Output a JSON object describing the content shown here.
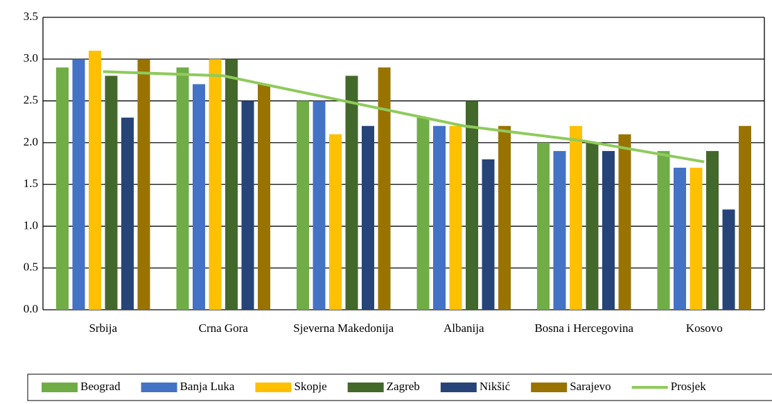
{
  "chart_data": {
    "type": "bar",
    "categories": [
      "Srbija",
      "Crna Gora",
      "Sjeverna Makedonija",
      "Albanija",
      "Bosna i Hercegovina",
      "Kosovo"
    ],
    "series": [
      {
        "name": "Beograd",
        "color": "#70ad47",
        "values": [
          2.9,
          2.9,
          2.5,
          2.3,
          2.0,
          1.9
        ]
      },
      {
        "name": "Banja Luka",
        "color": "#4472c4",
        "values": [
          3.0,
          2.7,
          2.5,
          2.2,
          1.9,
          1.7
        ]
      },
      {
        "name": "Skopje",
        "color": "#ffc000",
        "values": [
          3.1,
          3.0,
          2.1,
          2.2,
          2.2,
          1.7
        ]
      },
      {
        "name": "Zagreb",
        "color": "#43682b",
        "values": [
          2.8,
          3.0,
          2.8,
          2.5,
          2.0,
          1.9
        ]
      },
      {
        "name": "Nikšić",
        "color": "#264478",
        "values": [
          2.3,
          2.5,
          2.2,
          1.8,
          1.9,
          1.2
        ]
      },
      {
        "name": "Sarajevo",
        "color": "#997300",
        "values": [
          3.0,
          2.7,
          2.9,
          2.2,
          2.1,
          2.2
        ]
      },
      {
        "name": "Prosjek",
        "color": "#8fca5c",
        "type": "line",
        "values": [
          2.85,
          2.8,
          2.5,
          2.2,
          2.02,
          1.77
        ]
      }
    ],
    "ylim": [
      0,
      3.5
    ],
    "yticks": [
      {
        "value": 0,
        "label": "0.0"
      },
      0.5,
      {
        "value": 1,
        "label": "1.0"
      },
      1.5,
      {
        "value": 2,
        "label": "2.0"
      },
      2.5,
      {
        "value": 3,
        "label": "3.0"
      },
      3.5
    ],
    "grid": true,
    "legend": "bottom"
  }
}
